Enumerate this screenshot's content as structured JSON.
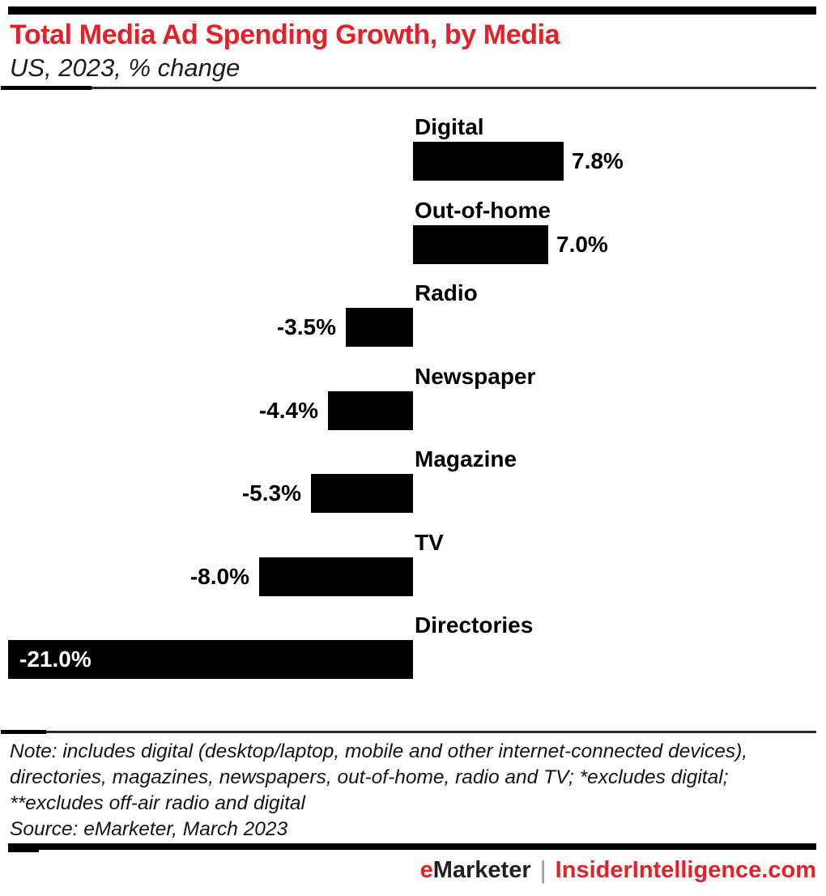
{
  "header": {
    "title": "Total Media Ad Spending Growth, by Media",
    "subtitle": "US, 2023, % change"
  },
  "chart_data": {
    "type": "bar",
    "orientation": "horizontal",
    "title": "Total Media Ad Spending Growth, by Media",
    "subtitle": "US, 2023, % change",
    "xlabel": "% change",
    "ylabel": "",
    "xlim": [
      -21.0,
      8.0
    ],
    "grid": false,
    "legend": false,
    "categories": [
      "Digital",
      "Out-of-home",
      "Radio",
      "Newspaper",
      "Magazine",
      "TV",
      "Directories"
    ],
    "values": [
      7.8,
      7.0,
      -3.5,
      -4.4,
      -5.3,
      -8.0,
      -21.0
    ],
    "value_labels": [
      "7.8%",
      "7.0%",
      "-3.5%",
      "-4.4%",
      "-5.3%",
      "-8.0%",
      "-21.0%"
    ]
  },
  "footnote": {
    "lines": [
      "Note: includes digital (desktop/laptop, mobile and other internet-connected devices),",
      "directories, magazines, newspapers, out-of-home, radio and TV; *excludes digital;",
      "**excludes off-air radio and digital"
    ],
    "source": "Source: eMarketer, March 2023"
  },
  "footer": {
    "brand": "eMarketer",
    "separator": "|",
    "site": "InsiderIntelligence.com"
  },
  "colors": {
    "brand_red": "#e42127",
    "bar_black": "#000000",
    "text_dark": "#111111",
    "separator_gray": "#9a9a9a"
  }
}
